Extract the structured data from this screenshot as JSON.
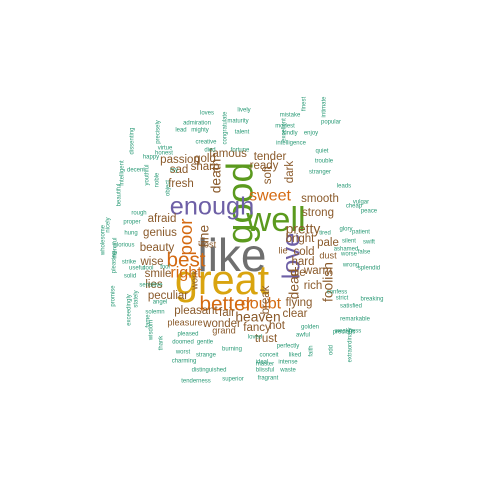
{
  "colors": {
    "grey": "#6f6f6f",
    "gold": "#d9a40f",
    "green": "#5b9a1e",
    "purple": "#6d5fa6",
    "orange": "#d46a12",
    "brown": "#8a5a2b",
    "teal": "#2a9a76",
    "pink": "#d0509a"
  },
  "words": [
    {
      "text": "like",
      "weight": 10,
      "color": "grey"
    },
    {
      "text": "great",
      "weight": 9,
      "color": "gold"
    },
    {
      "text": "good",
      "weight": 8,
      "color": "green"
    },
    {
      "text": "well",
      "weight": 7.5,
      "color": "green"
    },
    {
      "text": "love",
      "weight": 5.5,
      "color": "purple"
    },
    {
      "text": "enough",
      "weight": 5.5,
      "color": "purple"
    },
    {
      "text": "better",
      "weight": 4.5,
      "color": "orange"
    },
    {
      "text": "best",
      "weight": 4.5,
      "color": "orange"
    },
    {
      "text": "poor",
      "weight": 4,
      "color": "orange"
    },
    {
      "text": "doubt",
      "weight": 3.5,
      "color": "orange"
    },
    {
      "text": "sweet",
      "weight": 3.5,
      "color": "orange"
    },
    {
      "text": "right",
      "weight": 3.5,
      "color": "orange"
    },
    {
      "text": "death",
      "weight": 3,
      "color": "brown"
    },
    {
      "text": "heaven",
      "weight": 3,
      "color": "brown"
    },
    {
      "text": "pretty",
      "weight": 3,
      "color": "brown"
    },
    {
      "text": "foolish",
      "weight": 3,
      "color": "brown"
    },
    {
      "text": "fine",
      "weight": 3,
      "color": "brown"
    },
    {
      "text": "dead",
      "weight": 3,
      "color": "brown"
    },
    {
      "text": "famous",
      "weight": 2.5,
      "color": "brown"
    },
    {
      "text": "sharp",
      "weight": 2.5,
      "color": "brown"
    },
    {
      "text": "soft",
      "weight": 2.5,
      "color": "brown"
    },
    {
      "text": "dark",
      "weight": 2.5,
      "color": "brown"
    },
    {
      "text": "sad",
      "weight": 2.5,
      "color": "brown"
    },
    {
      "text": "fresh",
      "weight": 2.5,
      "color": "brown"
    },
    {
      "text": "afraid",
      "weight": 2.5,
      "color": "brown"
    },
    {
      "text": "genius",
      "weight": 2.5,
      "color": "brown"
    },
    {
      "text": "beauty",
      "weight": 2.5,
      "color": "brown"
    },
    {
      "text": "wise",
      "weight": 2.5,
      "color": "brown"
    },
    {
      "text": "lies",
      "weight": 2.5,
      "color": "brown"
    },
    {
      "text": "smile",
      "weight": 2.5,
      "color": "brown"
    },
    {
      "text": "peculiar",
      "weight": 2.5,
      "color": "brown"
    },
    {
      "text": "pleasant",
      "weight": 2.5,
      "color": "brown"
    },
    {
      "text": "wonder",
      "weight": 2.5,
      "color": "brown"
    },
    {
      "text": "fair",
      "weight": 2.5,
      "color": "brown"
    },
    {
      "text": "fancy",
      "weight": 2.5,
      "color": "brown"
    },
    {
      "text": "hot",
      "weight": 2.5,
      "color": "brown"
    },
    {
      "text": "clear",
      "weight": 2.5,
      "color": "brown"
    },
    {
      "text": "hard",
      "weight": 2.5,
      "color": "brown"
    },
    {
      "text": "bright",
      "weight": 2.5,
      "color": "brown"
    },
    {
      "text": "cold",
      "weight": 2.5,
      "color": "brown"
    },
    {
      "text": "pale",
      "weight": 2.5,
      "color": "brown"
    },
    {
      "text": "strong",
      "weight": 2.5,
      "color": "brown"
    },
    {
      "text": "smooth",
      "weight": 2.5,
      "color": "brown"
    },
    {
      "text": "die",
      "weight": 2.5,
      "color": "brown"
    },
    {
      "text": "warm",
      "weight": 2.5,
      "color": "brown"
    },
    {
      "text": "rich",
      "weight": 2.5,
      "color": "brown"
    },
    {
      "text": "flying",
      "weight": 2.5,
      "color": "brown"
    },
    {
      "text": "trust",
      "weight": 2.5,
      "color": "brown"
    },
    {
      "text": "tender",
      "weight": 2.5,
      "color": "brown"
    },
    {
      "text": "ready",
      "weight": 2.5,
      "color": "brown"
    },
    {
      "text": "gold",
      "weight": 2.5,
      "color": "brown"
    },
    {
      "text": "passion",
      "weight": 2.5,
      "color": "brown"
    },
    {
      "text": "break",
      "weight": 2.5,
      "color": "brown"
    },
    {
      "text": "lost",
      "weight": 2,
      "color": "brown"
    },
    {
      "text": "grand",
      "weight": 2,
      "color": "brown"
    },
    {
      "text": "pleasure",
      "weight": 2,
      "color": "brown"
    },
    {
      "text": "lie",
      "weight": 2,
      "color": "brown"
    },
    {
      "text": "dust",
      "weight": 2,
      "color": "brown"
    },
    {
      "text": "work",
      "weight": 2,
      "color": "brown"
    },
    {
      "text": "intelligence",
      "weight": 1.3,
      "color": "teal"
    },
    {
      "text": "kindly",
      "weight": 1.3,
      "color": "teal"
    },
    {
      "text": "modest",
      "weight": 1.3,
      "color": "teal"
    },
    {
      "text": "maturity",
      "weight": 1.3,
      "color": "teal"
    },
    {
      "text": "talent",
      "weight": 1.3,
      "color": "teal"
    },
    {
      "text": "lively",
      "weight": 1.3,
      "color": "teal"
    },
    {
      "text": "loves",
      "weight": 1.3,
      "color": "teal"
    },
    {
      "text": "admiration",
      "weight": 1.3,
      "color": "teal"
    },
    {
      "text": "mighty",
      "weight": 1.3,
      "color": "teal"
    },
    {
      "text": "lead",
      "weight": 1.3,
      "color": "teal"
    },
    {
      "text": "creative",
      "weight": 1.3,
      "color": "teal"
    },
    {
      "text": "died",
      "weight": 1.3,
      "color": "teal"
    },
    {
      "text": "fortune",
      "weight": 1.3,
      "color": "teal"
    },
    {
      "text": "virtue",
      "weight": 1.3,
      "color": "teal"
    },
    {
      "text": "honest",
      "weight": 1.3,
      "color": "teal"
    },
    {
      "text": "happy",
      "weight": 1.3,
      "color": "teal"
    },
    {
      "text": "cry",
      "weight": 1.3,
      "color": "teal"
    },
    {
      "text": "decent",
      "weight": 1.3,
      "color": "teal"
    },
    {
      "text": "rough",
      "weight": 1.3,
      "color": "teal"
    },
    {
      "text": "proper",
      "weight": 1.3,
      "color": "teal"
    },
    {
      "text": "hung",
      "weight": 1.3,
      "color": "teal"
    },
    {
      "text": "glorious",
      "weight": 1.3,
      "color": "teal"
    },
    {
      "text": "strike",
      "weight": 1.3,
      "color": "teal"
    },
    {
      "text": "useful",
      "weight": 1.3,
      "color": "teal"
    },
    {
      "text": "solid",
      "weight": 1.3,
      "color": "teal"
    },
    {
      "text": "cool",
      "weight": 1.3,
      "color": "teal"
    },
    {
      "text": "fool",
      "weight": 1.3,
      "color": "teal"
    },
    {
      "text": "sensitive",
      "weight": 1.3,
      "color": "teal"
    },
    {
      "text": "angel",
      "weight": 1.3,
      "color": "teal"
    },
    {
      "text": "solemn",
      "weight": 1.3,
      "color": "teal"
    },
    {
      "text": "pleased",
      "weight": 1.3,
      "color": "teal"
    },
    {
      "text": "doomed",
      "weight": 1.3,
      "color": "teal"
    },
    {
      "text": "gentle",
      "weight": 1.3,
      "color": "teal"
    },
    {
      "text": "worst",
      "weight": 1.3,
      "color": "teal"
    },
    {
      "text": "charming",
      "weight": 1.3,
      "color": "teal"
    },
    {
      "text": "strange",
      "weight": 1.3,
      "color": "teal"
    },
    {
      "text": "burning",
      "weight": 1.3,
      "color": "teal"
    },
    {
      "text": "loved",
      "weight": 1.3,
      "color": "teal"
    },
    {
      "text": "ideal",
      "weight": 1.3,
      "color": "teal"
    },
    {
      "text": "distinguished",
      "weight": 1.3,
      "color": "teal"
    },
    {
      "text": "blissful",
      "weight": 1.3,
      "color": "teal"
    },
    {
      "text": "waste",
      "weight": 1.3,
      "color": "teal"
    },
    {
      "text": "tenderness",
      "weight": 1.3,
      "color": "teal"
    },
    {
      "text": "superior",
      "weight": 1.3,
      "color": "teal"
    },
    {
      "text": "fragrant",
      "weight": 1.3,
      "color": "teal"
    },
    {
      "text": "master",
      "weight": 1.3,
      "color": "teal"
    },
    {
      "text": "intense",
      "weight": 1.3,
      "color": "teal"
    },
    {
      "text": "conceit",
      "weight": 1.3,
      "color": "teal"
    },
    {
      "text": "liked",
      "weight": 1.3,
      "color": "teal"
    },
    {
      "text": "perfectly",
      "weight": 1.3,
      "color": "teal"
    },
    {
      "text": "golden",
      "weight": 1.3,
      "color": "teal"
    },
    {
      "text": "awful",
      "weight": 1.3,
      "color": "teal"
    },
    {
      "text": "tired",
      "weight": 1.3,
      "color": "teal"
    },
    {
      "text": "strict",
      "weight": 1.3,
      "color": "teal"
    },
    {
      "text": "confess",
      "weight": 1.3,
      "color": "teal"
    },
    {
      "text": "wrong",
      "weight": 1.3,
      "color": "teal"
    },
    {
      "text": "worse",
      "weight": 1.3,
      "color": "teal"
    },
    {
      "text": "silent",
      "weight": 1.3,
      "color": "teal"
    },
    {
      "text": "ashamed",
      "weight": 1.3,
      "color": "teal"
    },
    {
      "text": "glory",
      "weight": 1.3,
      "color": "teal"
    },
    {
      "text": "splendid",
      "weight": 1.3,
      "color": "teal"
    },
    {
      "text": "swift",
      "weight": 1.3,
      "color": "teal"
    },
    {
      "text": "peace",
      "weight": 1.3,
      "color": "teal"
    },
    {
      "text": "false",
      "weight": 1.3,
      "color": "teal"
    },
    {
      "text": "patient",
      "weight": 1.3,
      "color": "teal"
    },
    {
      "text": "cheap",
      "weight": 1.3,
      "color": "teal"
    },
    {
      "text": "vulgar",
      "weight": 1.3,
      "color": "teal"
    },
    {
      "text": "leads",
      "weight": 1.3,
      "color": "teal"
    },
    {
      "text": "stranger",
      "weight": 1.3,
      "color": "teal"
    },
    {
      "text": "quiet",
      "weight": 1.3,
      "color": "teal"
    },
    {
      "text": "trouble",
      "weight": 1.3,
      "color": "teal"
    },
    {
      "text": "popular",
      "weight": 1.3,
      "color": "teal"
    },
    {
      "text": "enjoy",
      "weight": 1.3,
      "color": "teal"
    },
    {
      "text": "mistake",
      "weight": 1.3,
      "color": "teal"
    },
    {
      "text": "finest",
      "weight": 1.3,
      "color": "teal"
    },
    {
      "text": "intimate",
      "weight": 1.3,
      "color": "teal"
    },
    {
      "text": "satisfied",
      "weight": 1.3,
      "color": "teal"
    },
    {
      "text": "remarkable",
      "weight": 1.3,
      "color": "teal"
    },
    {
      "text": "weakness",
      "weight": 1.3,
      "color": "teal"
    },
    {
      "text": "extraordinary",
      "weight": 1.3,
      "color": "teal"
    },
    {
      "text": "precious",
      "weight": 1.3,
      "color": "teal"
    },
    {
      "text": "breaking",
      "weight": 1.3,
      "color": "teal"
    },
    {
      "text": "wholesome",
      "weight": 1.3,
      "color": "teal"
    },
    {
      "text": "beautiful",
      "weight": 1.3,
      "color": "teal"
    },
    {
      "text": "nicely",
      "weight": 1.3,
      "color": "teal"
    },
    {
      "text": "intelligent",
      "weight": 1.3,
      "color": "teal"
    },
    {
      "text": "precisely",
      "weight": 1.3,
      "color": "teal"
    },
    {
      "text": "dissenting",
      "weight": 1.3,
      "color": "teal"
    },
    {
      "text": "youthful",
      "weight": 1.3,
      "color": "teal"
    },
    {
      "text": "noble",
      "weight": 1.3,
      "color": "teal"
    },
    {
      "text": "object",
      "weight": 1.3,
      "color": "teal"
    },
    {
      "text": "merciful",
      "weight": 1.3,
      "color": "teal"
    },
    {
      "text": "pleasing",
      "weight": 1.3,
      "color": "teal"
    },
    {
      "text": "exceedingly",
      "weight": 1.3,
      "color": "teal"
    },
    {
      "text": "wisdom",
      "weight": 1.3,
      "color": "teal"
    },
    {
      "text": "promise",
      "weight": 1.3,
      "color": "teal"
    },
    {
      "text": "stately",
      "weight": 1.3,
      "color": "teal"
    },
    {
      "text": "thank",
      "weight": 1.3,
      "color": "teal"
    },
    {
      "text": "fame",
      "weight": 1.3,
      "color": "teal"
    },
    {
      "text": "excellent",
      "weight": 1.3,
      "color": "teal"
    },
    {
      "text": "congratulate",
      "weight": 1.3,
      "color": "teal"
    },
    {
      "text": "odd",
      "weight": 1.3,
      "color": "teal"
    },
    {
      "text": "faith",
      "weight": 1.3,
      "color": "teal"
    }
  ]
}
